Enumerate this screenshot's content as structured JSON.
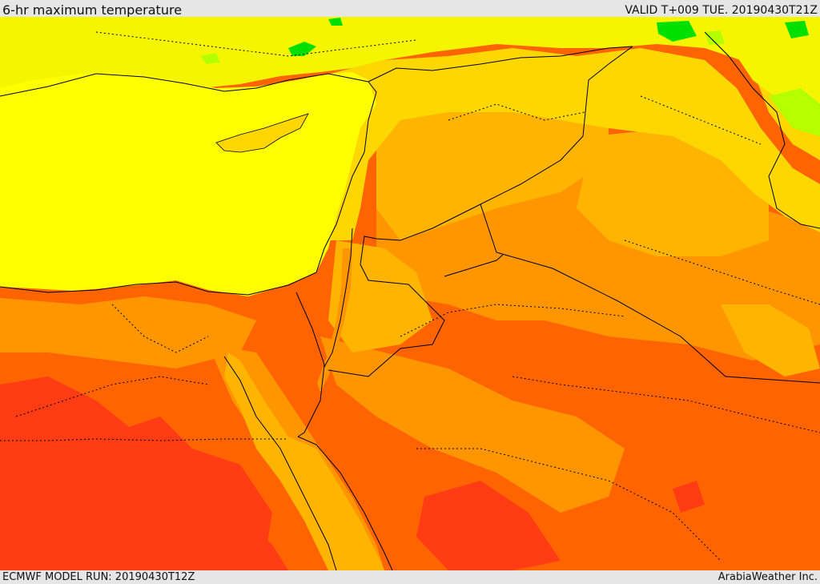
{
  "header": {
    "title": "6-hr maximum temperature",
    "valid_time": "VALID T+009 TUE. 20190430T21Z"
  },
  "footer": {
    "model_run": "ECMWF MODEL RUN: 20190430T12Z",
    "credit": "ArabiaWeather Inc."
  },
  "map": {
    "colors": {
      "sea": "#ffff00",
      "cool_land": "#f5f500",
      "yellow_orange": "#ffd700",
      "light_orange": "#ffb400",
      "orange": "#ff9600",
      "deep_orange": "#ff6400",
      "red_orange": "#ff3c14",
      "green": "#00e000",
      "light_green": "#b4ff00",
      "border": "#000000"
    }
  }
}
